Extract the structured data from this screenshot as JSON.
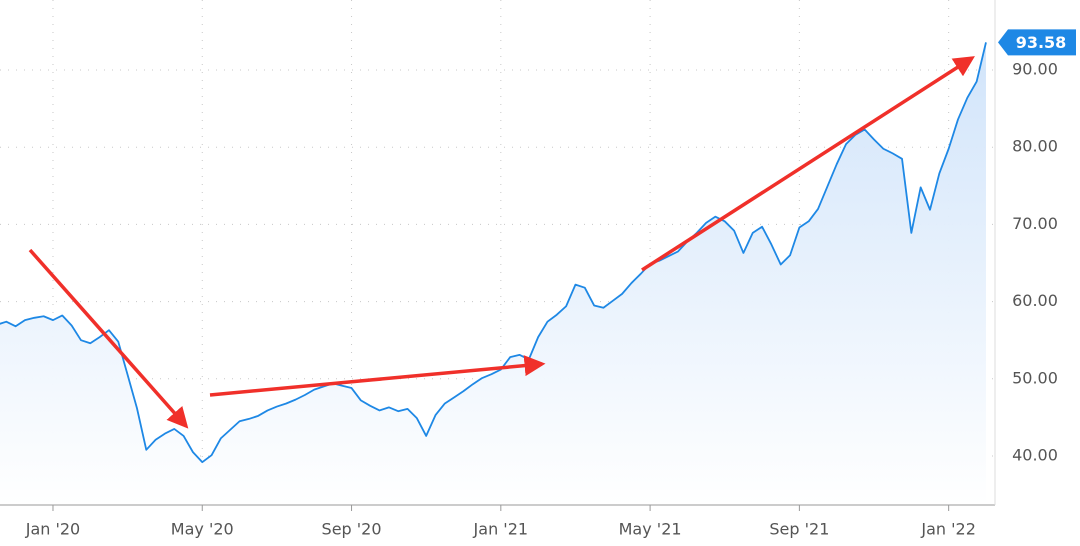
{
  "chart_data": {
    "type": "area",
    "categories": [
      null,
      null,
      null,
      null,
      null,
      null,
      "Jan '20",
      null,
      null,
      null,
      null,
      null,
      null,
      null,
      null,
      null,
      null,
      null,
      null,
      null,
      null,
      null,
      "May '20",
      null,
      null,
      null,
      null,
      null,
      null,
      null,
      null,
      null,
      null,
      null,
      null,
      null,
      null,
      null,
      "Sep '20",
      null,
      null,
      null,
      null,
      null,
      null,
      null,
      null,
      null,
      null,
      null,
      null,
      null,
      null,
      null,
      "Jan '21",
      null,
      null,
      null,
      null,
      null,
      null,
      null,
      null,
      null,
      null,
      null,
      null,
      null,
      null,
      null,
      "May '21",
      null,
      null,
      null,
      null,
      null,
      null,
      null,
      null,
      null,
      null,
      null,
      null,
      null,
      null,
      null,
      "Sep '21",
      null,
      null,
      null,
      null,
      null,
      null,
      null,
      null,
      null,
      null,
      null,
      null,
      null,
      null,
      null,
      "Jan '22",
      null,
      null,
      null,
      null
    ],
    "values": [
      57.0,
      57.4,
      56.8,
      57.6,
      57.9,
      58.1,
      57.6,
      58.2,
      56.9,
      55.0,
      54.6,
      55.4,
      56.3,
      54.8,
      50.5,
      46.2,
      40.8,
      42.1,
      42.9,
      43.5,
      42.6,
      40.5,
      39.2,
      40.1,
      42.3,
      43.4,
      44.5,
      44.8,
      45.2,
      45.9,
      46.4,
      46.8,
      47.3,
      47.9,
      48.6,
      49.0,
      49.4,
      49.1,
      48.8,
      47.2,
      46.5,
      45.9,
      46.3,
      45.8,
      46.1,
      44.9,
      42.6,
      45.3,
      46.8,
      47.6,
      48.4,
      49.3,
      50.1,
      50.6,
      51.2,
      52.8,
      53.1,
      52.5,
      55.4,
      57.4,
      58.3,
      59.4,
      62.2,
      61.8,
      59.5,
      59.2,
      60.1,
      61.0,
      62.4,
      63.6,
      64.9,
      65.3,
      65.9,
      66.5,
      67.8,
      68.9,
      70.2,
      71.0,
      70.4,
      69.2,
      66.3,
      68.9,
      69.7,
      67.4,
      64.8,
      66.0,
      69.6,
      70.4,
      72.0,
      74.9,
      77.8,
      80.4,
      81.6,
      82.3,
      81.0,
      79.8,
      79.2,
      78.5,
      68.9,
      74.8,
      71.9,
      76.6,
      79.8,
      83.6,
      86.4,
      88.5,
      93.58
    ],
    "color": "#1e88e5",
    "fill_color": "#cfe3fa",
    "ylim": [
      33.65,
      99.07
    ],
    "yticks": [
      {
        "value": 40,
        "label": "40.00"
      },
      {
        "value": 50,
        "label": "50.00"
      },
      {
        "value": 60,
        "label": "60.00"
      },
      {
        "value": 70,
        "label": "70.00"
      },
      {
        "value": 80,
        "label": "80.00"
      },
      {
        "value": 90,
        "label": "90.00"
      }
    ],
    "grid": true
  }
}
